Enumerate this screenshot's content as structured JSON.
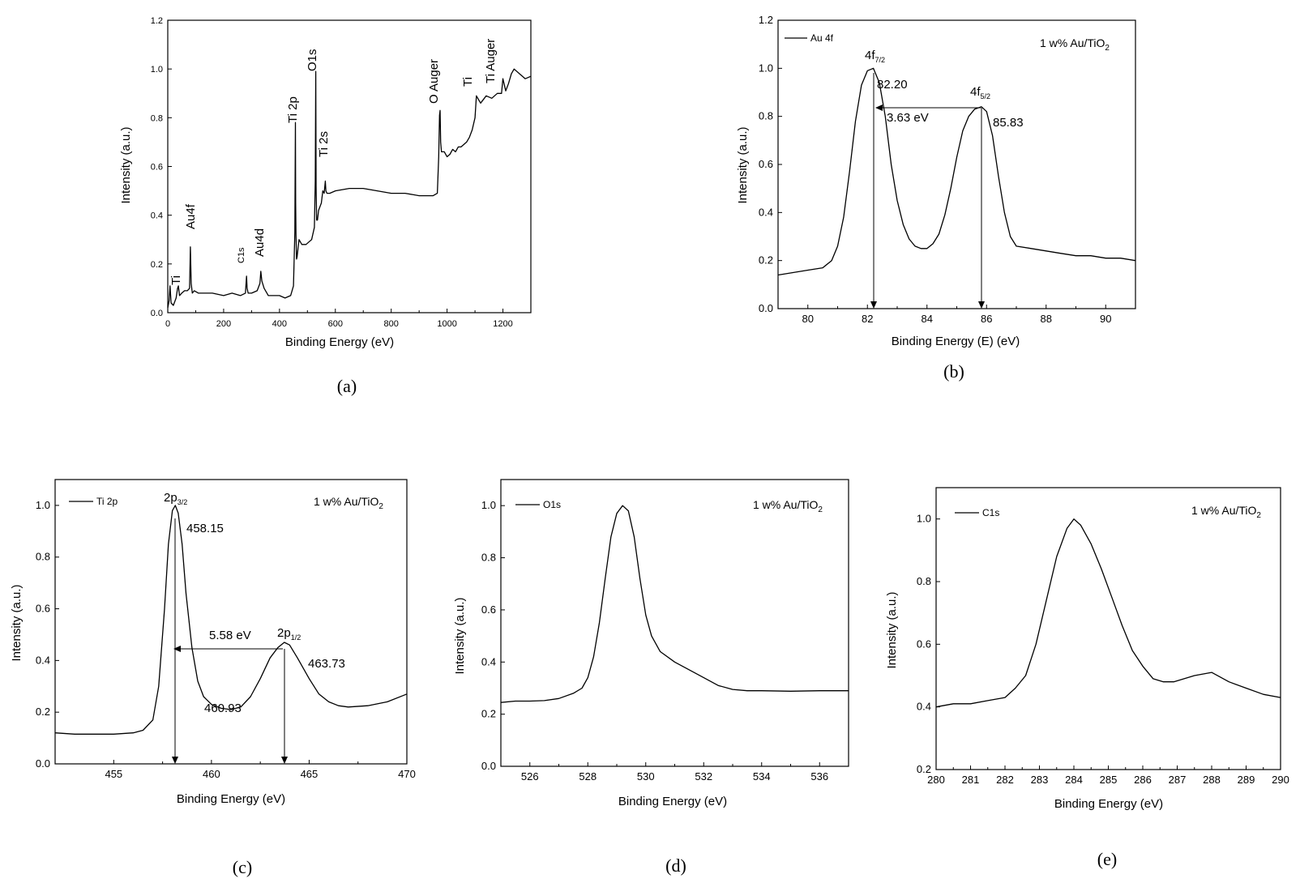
{
  "chart_data": [
    {
      "id": "a",
      "type": "line",
      "panel_label": "(a)",
      "xlabel": "Binding Energy (eV)",
      "ylabel": "Intensity (a.u.)",
      "xlim": [
        0,
        1300
      ],
      "ylim": [
        0,
        1.2
      ],
      "xticks": [
        0,
        200,
        400,
        600,
        800,
        1000,
        1200
      ],
      "yticks": [
        0.0,
        0.2,
        0.4,
        0.6,
        0.8,
        1.0,
        1.2
      ],
      "series": [
        {
          "x": [
            0,
            5,
            8,
            12,
            20,
            30,
            35,
            38,
            42,
            50,
            60,
            70,
            78,
            81,
            84,
            88,
            95,
            110,
            130,
            160,
            200,
            230,
            260,
            278,
            282,
            284,
            288,
            300,
            320,
            330,
            333,
            337,
            345,
            360,
            380,
            400,
            420,
            440,
            450,
            455,
            457,
            458,
            459,
            461,
            463,
            466,
            470,
            480,
            495,
            505,
            515,
            525,
            528,
            530,
            531,
            533,
            536,
            540,
            550,
            555,
            560,
            564,
            566,
            570,
            580,
            600,
            650,
            700,
            750,
            800,
            850,
            900,
            950,
            965,
            970,
            973,
            975,
            977,
            980,
            990,
            1000,
            1010,
            1020,
            1030,
            1040,
            1050,
            1060,
            1070,
            1080,
            1090,
            1100,
            1105,
            1110,
            1120,
            1140,
            1160,
            1180,
            1195,
            1200,
            1210,
            1220,
            1230,
            1240,
            1260,
            1280,
            1300
          ],
          "y": [
            0.02,
            0.05,
            0.11,
            0.04,
            0.03,
            0.06,
            0.1,
            0.11,
            0.07,
            0.08,
            0.09,
            0.09,
            0.1,
            0.27,
            0.12,
            0.08,
            0.09,
            0.08,
            0.08,
            0.08,
            0.07,
            0.08,
            0.07,
            0.08,
            0.15,
            0.1,
            0.08,
            0.08,
            0.09,
            0.12,
            0.17,
            0.13,
            0.1,
            0.07,
            0.07,
            0.07,
            0.06,
            0.07,
            0.11,
            0.33,
            0.78,
            0.45,
            0.32,
            0.22,
            0.23,
            0.26,
            0.3,
            0.28,
            0.28,
            0.29,
            0.3,
            0.35,
            0.54,
            0.99,
            0.52,
            0.38,
            0.38,
            0.42,
            0.45,
            0.5,
            0.49,
            0.54,
            0.5,
            0.49,
            0.49,
            0.5,
            0.51,
            0.51,
            0.5,
            0.49,
            0.49,
            0.48,
            0.48,
            0.49,
            0.64,
            0.81,
            0.83,
            0.7,
            0.66,
            0.66,
            0.64,
            0.65,
            0.67,
            0.66,
            0.68,
            0.68,
            0.69,
            0.7,
            0.72,
            0.75,
            0.8,
            0.89,
            0.88,
            0.86,
            0.89,
            0.88,
            0.9,
            0.9,
            0.96,
            0.91,
            0.94,
            0.98,
            1.0,
            0.98,
            0.96,
            0.97
          ]
        }
      ],
      "annotations": [
        "Ti",
        "Au4f",
        "C1s",
        "Au4d",
        "Ti 2p",
        "O1s",
        "Ti 2s",
        "O Auger",
        "Ti",
        "Ti Auger"
      ]
    },
    {
      "id": "b",
      "type": "line",
      "panel_label": "(b)",
      "xlabel": "Binding Energy (E) (eV)",
      "ylabel": "Intensity (a.u.)",
      "xlim": [
        79,
        91
      ],
      "ylim": [
        0,
        1.2
      ],
      "xticks": [
        80,
        82,
        84,
        86,
        88,
        90
      ],
      "yticks": [
        0.0,
        0.2,
        0.4,
        0.6,
        0.8,
        1.0,
        1.2
      ],
      "legend": "Au 4f",
      "sample": "1 w% Au/TiO",
      "sample_sub": "2",
      "series": [
        {
          "name": "Au 4f",
          "x": [
            79,
            79.5,
            80,
            80.5,
            80.8,
            81.0,
            81.2,
            81.4,
            81.6,
            81.8,
            82.0,
            82.2,
            82.4,
            82.6,
            82.8,
            83.0,
            83.2,
            83.4,
            83.6,
            83.8,
            84.0,
            84.2,
            84.4,
            84.6,
            84.8,
            85.0,
            85.2,
            85.4,
            85.6,
            85.83,
            86.0,
            86.2,
            86.4,
            86.6,
            86.8,
            87.0,
            87.5,
            88.0,
            88.5,
            89.0,
            89.5,
            90.0,
            90.5,
            91.0
          ],
          "y": [
            0.14,
            0.15,
            0.16,
            0.17,
            0.2,
            0.26,
            0.38,
            0.57,
            0.78,
            0.93,
            0.99,
            1.0,
            0.94,
            0.8,
            0.6,
            0.45,
            0.35,
            0.29,
            0.26,
            0.25,
            0.25,
            0.27,
            0.31,
            0.39,
            0.5,
            0.63,
            0.74,
            0.8,
            0.83,
            0.84,
            0.82,
            0.72,
            0.55,
            0.4,
            0.3,
            0.26,
            0.25,
            0.24,
            0.23,
            0.22,
            0.22,
            0.21,
            0.21,
            0.2
          ]
        }
      ],
      "peaks": [
        {
          "label": "4f",
          "sub": "7/2",
          "value": "82.20",
          "x": 82.2
        },
        {
          "label": "4f",
          "sub": "5/2",
          "value": "85.83",
          "x": 85.83
        }
      ],
      "spacing_label": "3.63 eV"
    },
    {
      "id": "c",
      "type": "line",
      "panel_label": "(c)",
      "xlabel": "Binding Energy (eV)",
      "ylabel": "Intensity (a.u.)",
      "xlim": [
        452,
        470
      ],
      "ylim": [
        0,
        1.1
      ],
      "xticks": [
        455,
        460,
        465,
        470
      ],
      "yticks": [
        0.0,
        0.2,
        0.4,
        0.6,
        0.8,
        1.0
      ],
      "legend": "Ti 2p",
      "sample": "1 w% Au/TiO",
      "sample_sub": "2",
      "series": [
        {
          "name": "Ti 2p",
          "x": [
            452,
            453,
            454,
            455,
            456,
            456.5,
            457,
            457.3,
            457.6,
            457.8,
            458.0,
            458.15,
            458.3,
            458.5,
            458.7,
            459.0,
            459.3,
            459.6,
            460.0,
            460.5,
            461.0,
            461.5,
            462.0,
            462.5,
            463.0,
            463.4,
            463.73,
            464.0,
            464.4,
            465.0,
            465.5,
            466.0,
            466.5,
            467.0,
            468.0,
            469.0,
            470.0
          ],
          "y": [
            0.12,
            0.115,
            0.115,
            0.115,
            0.12,
            0.13,
            0.17,
            0.3,
            0.6,
            0.85,
            0.98,
            1.0,
            0.97,
            0.85,
            0.66,
            0.45,
            0.32,
            0.26,
            0.23,
            0.215,
            0.21,
            0.22,
            0.26,
            0.33,
            0.41,
            0.45,
            0.47,
            0.46,
            0.41,
            0.33,
            0.27,
            0.24,
            0.225,
            0.22,
            0.225,
            0.24,
            0.27
          ]
        }
      ],
      "peaks": [
        {
          "label": "2p",
          "sub": "3/2",
          "value": "458.15",
          "x": 458.15
        },
        {
          "label": "2p",
          "sub": "1/2",
          "value": "463.73",
          "x": 463.73
        }
      ],
      "valley_label": "460.93",
      "spacing_label": "5.58 eV"
    },
    {
      "id": "d",
      "type": "line",
      "panel_label": "(d)",
      "xlabel": "Binding Energy (eV)",
      "ylabel": "Intensity (a.u.)",
      "xlim": [
        525,
        537
      ],
      "ylim": [
        0,
        1.1
      ],
      "xticks": [
        526,
        528,
        530,
        532,
        534,
        536
      ],
      "yticks": [
        0.0,
        0.2,
        0.4,
        0.6,
        0.8,
        1.0
      ],
      "legend": "O1s",
      "sample": "1 w% Au/TiO",
      "sample_sub": "2",
      "series": [
        {
          "name": "O1s",
          "x": [
            525,
            525.5,
            526,
            526.5,
            527,
            527.5,
            527.8,
            528.0,
            528.2,
            528.4,
            528.6,
            528.8,
            529.0,
            529.2,
            529.4,
            529.6,
            529.8,
            530.0,
            530.2,
            530.5,
            531.0,
            531.5,
            532.0,
            532.5,
            533.0,
            533.5,
            534.0,
            535.0,
            536.0,
            537.0
          ],
          "y": [
            0.245,
            0.25,
            0.25,
            0.252,
            0.26,
            0.28,
            0.3,
            0.34,
            0.42,
            0.55,
            0.72,
            0.88,
            0.97,
            1.0,
            0.98,
            0.88,
            0.72,
            0.58,
            0.5,
            0.44,
            0.4,
            0.37,
            0.34,
            0.31,
            0.295,
            0.29,
            0.29,
            0.288,
            0.29,
            0.29
          ]
        }
      ]
    },
    {
      "id": "e",
      "type": "line",
      "panel_label": "(e)",
      "xlabel": "Binding Energy (eV)",
      "ylabel": "Intensity (a.u.)",
      "xlim": [
        280,
        290
      ],
      "ylim": [
        0.2,
        1.1
      ],
      "xticks": [
        280,
        281,
        282,
        283,
        284,
        285,
        286,
        287,
        288,
        289,
        290
      ],
      "yticks": [
        0.2,
        0.4,
        0.6,
        0.8,
        1.0
      ],
      "legend": "C1s",
      "sample": "1 w% Au/TiO",
      "sample_sub": "2",
      "series": [
        {
          "name": "C1s",
          "x": [
            280,
            280.5,
            281,
            281.5,
            282,
            282.3,
            282.6,
            282.9,
            283.2,
            283.5,
            283.8,
            284.0,
            284.2,
            284.5,
            284.8,
            285.1,
            285.4,
            285.7,
            286.0,
            286.3,
            286.6,
            286.9,
            287.2,
            287.5,
            288.0,
            288.5,
            289.0,
            289.5,
            290.0
          ],
          "y": [
            0.4,
            0.41,
            0.41,
            0.42,
            0.43,
            0.46,
            0.5,
            0.6,
            0.74,
            0.88,
            0.97,
            1.0,
            0.98,
            0.92,
            0.84,
            0.75,
            0.66,
            0.58,
            0.53,
            0.49,
            0.48,
            0.48,
            0.49,
            0.5,
            0.51,
            0.48,
            0.46,
            0.44,
            0.43
          ]
        }
      ]
    }
  ]
}
